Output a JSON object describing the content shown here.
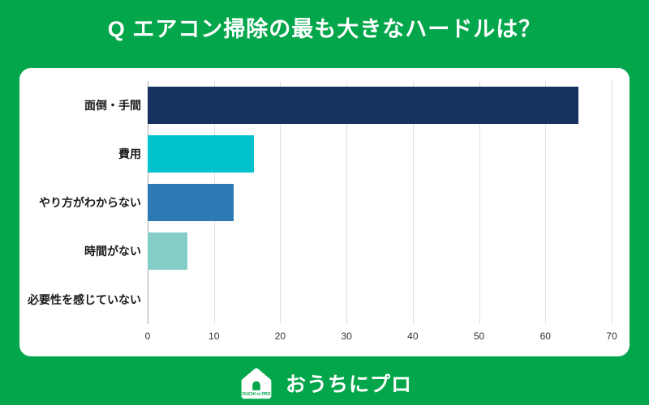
{
  "header": {
    "title": "Q エアコン掃除の最も大きなハードルは？"
  },
  "chart_data": {
    "type": "bar",
    "orientation": "horizontal",
    "title": "Q エアコン掃除の最も大きなハードルは？",
    "categories": [
      "面倒・手間",
      "費用",
      "やり方がわからない",
      "時間がない",
      "必要性を感じていない"
    ],
    "values": [
      65,
      16,
      13,
      6,
      0
    ],
    "bar_colors": [
      "#16325f",
      "#00c2cc",
      "#2d79b4",
      "#84cdc9",
      "#84cdc9"
    ],
    "xlim": [
      0,
      70
    ],
    "xticks": [
      0,
      10,
      20,
      30,
      40,
      50,
      60,
      70
    ],
    "xlabel": "",
    "ylabel": "",
    "grid": true,
    "legend": false
  },
  "footer": {
    "logo_icon_text": "OUCHI ni PRO",
    "logo_text": "おうちにプロ"
  },
  "colors": {
    "background": "#03a64a",
    "card": "#ffffff",
    "title_text": "#ffffff",
    "gridline": "#dedede"
  }
}
